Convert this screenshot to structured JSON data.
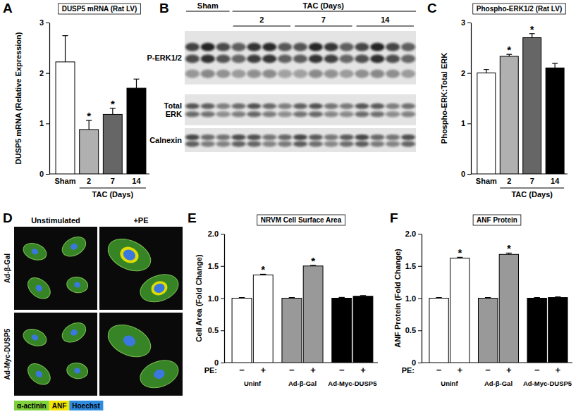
{
  "chart_data": [
    {
      "type": "bar",
      "panel": "A",
      "title": "DUSP5 mRNA (Rat LV)",
      "y_label": "DUSP5 mRNA (Relative Expression)",
      "categories": [
        "Sham",
        "2",
        "7",
        "14"
      ],
      "values": [
        2.22,
        0.88,
        1.18,
        1.7
      ],
      "errors": [
        0.52,
        0.18,
        0.12,
        0.18
      ],
      "value_annotations": [
        null,
        "*",
        "*",
        null
      ],
      "colors": [
        "#ffffff",
        "#b0b0b0",
        "#666666",
        "#000000"
      ],
      "x_group": {
        "label": "TAC (Days)",
        "categories": [
          "2",
          "7",
          "14"
        ]
      },
      "ylim": [
        0,
        3
      ],
      "yticks": [
        0,
        1,
        2,
        3
      ]
    },
    {
      "type": "bar",
      "panel": "C",
      "title": "Phospho-ERK1/2 (Rat LV)",
      "y_label": "Phospho-ERK:Total ERK",
      "categories": [
        "Sham",
        "2",
        "7",
        "14"
      ],
      "values": [
        2.0,
        2.33,
        2.7,
        2.1
      ],
      "errors": [
        0.07,
        0.04,
        0.08,
        0.09
      ],
      "value_annotations": [
        null,
        "*",
        "*",
        null
      ],
      "colors": [
        "#ffffff",
        "#b0b0b0",
        "#666666",
        "#000000"
      ],
      "x_group": {
        "label": "TAC (Days)",
        "categories": [
          "2",
          "7",
          "14"
        ]
      },
      "ylim": [
        0,
        3
      ],
      "yticks": [
        0,
        1,
        2,
        3
      ]
    },
    {
      "type": "bar",
      "panel": "E",
      "title": "NRVM Cell Surface Area",
      "y_label": "Cell Area (Fold Change)",
      "x_label": "PE:",
      "categories": [
        "−",
        "+",
        "−",
        "+",
        "−",
        "+"
      ],
      "groups": [
        "Uninf",
        "Ad-β-Gal",
        "Ad-Myc-DUSP5"
      ],
      "values": [
        1.0,
        1.36,
        1.0,
        1.5,
        1.0,
        1.03
      ],
      "errors": [
        0.01,
        0.012,
        0.01,
        0.01,
        0.012,
        0.01
      ],
      "value_annotations": [
        null,
        "*",
        null,
        "*",
        null,
        null
      ],
      "colors": [
        "#ffffff",
        "#ffffff",
        "#999999",
        "#999999",
        "#000000",
        "#000000"
      ],
      "ylim": [
        0,
        2
      ],
      "yticks": [
        0,
        0.5,
        {
          "value": 1,
          "label": "1.0"
        },
        1.5,
        {
          "value": 2,
          "label": "2.0"
        }
      ]
    },
    {
      "type": "bar",
      "panel": "F",
      "title": "ANF Protein",
      "y_label": "ANF Protein (Fold Change)",
      "x_label": "PE:",
      "categories": [
        "−",
        "+",
        "−",
        "+",
        "−",
        "+"
      ],
      "groups": [
        "Uninf",
        "Ad-β-Gal",
        "Ad-Myc-DUSP5"
      ],
      "values": [
        1.0,
        1.62,
        1.0,
        1.68,
        1.0,
        1.01
      ],
      "errors": [
        0.01,
        0.015,
        0.01,
        0.02,
        0.01,
        0.01
      ],
      "value_annotations": [
        null,
        "*",
        null,
        "*",
        null,
        null
      ],
      "colors": [
        "#ffffff",
        "#ffffff",
        "#999999",
        "#999999",
        "#000000",
        "#000000"
      ],
      "ylim": [
        0,
        2
      ],
      "yticks": [
        0,
        0.5,
        {
          "value": 1,
          "label": "1.0"
        },
        1.5,
        {
          "value": 2,
          "label": "2.0"
        }
      ]
    }
  ],
  "blot": {
    "panel": "B",
    "groups": [
      "Sham",
      "2",
      "7",
      "14"
    ],
    "group_header": "TAC (Days)",
    "rows": [
      "P-ERK1/2",
      "Total ERK",
      "Calnexin"
    ]
  },
  "micrograph": {
    "panel": "D",
    "columns": [
      "Unstimulated",
      "+PE"
    ],
    "rows": [
      "Ad-β-Gal",
      "Ad-Myc-DUSP5"
    ],
    "stains": [
      {
        "label": "α-actinin",
        "color": "#7fd13b"
      },
      {
        "label": "ANF",
        "color": "#f2e600"
      },
      {
        "label": "Hoechst",
        "color": "#2f8de0"
      }
    ]
  }
}
